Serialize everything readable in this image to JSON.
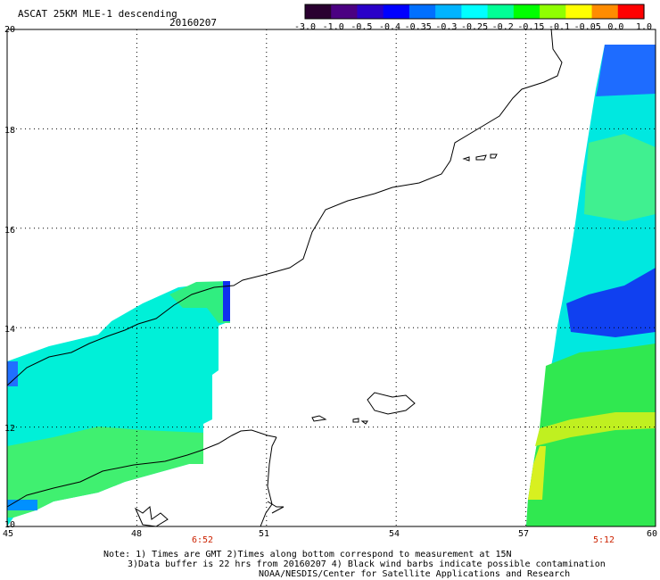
{
  "header": {
    "title": "ASCAT 25KM MLE-1 descending",
    "date": "20160207"
  },
  "colorbar": {
    "labels": [
      "-3.0",
      "-1.0",
      "-0.5",
      "-0.4",
      "-0.35",
      "-0.3",
      "-0.25",
      "-0.2",
      "-0.15",
      "-0.1",
      "-0.05",
      "0.0",
      "1.0"
    ],
    "colors": [
      "#2a0030",
      "#4b0082",
      "#2a00c8",
      "#0000ff",
      "#0070ff",
      "#00b4ff",
      "#00ffff",
      "#00ff96",
      "#00ff00",
      "#90ff00",
      "#ffff00",
      "#ff8c00",
      "#ff0000"
    ]
  },
  "map": {
    "lat_labels": [
      "20",
      "18",
      "16",
      "14",
      "12",
      "10"
    ],
    "lon_labels": [
      "45",
      "48",
      "51",
      "54",
      "57",
      "60"
    ],
    "lat_range": [
      10,
      20
    ],
    "lon_range": [
      45,
      60
    ],
    "gridlines": true,
    "pass_times": [
      "6:52",
      "5:12"
    ]
  },
  "notes": {
    "line1": "Note: 1) Times are GMT 2)Times along bottom correspond to measurement at 15N",
    "line2": "3)Data buffer is 22 hrs from 20160207 4) Black wind barbs indicate possible contamination",
    "line3": "NOAA/NESDIS/Center for Satellite Applications and Research"
  }
}
